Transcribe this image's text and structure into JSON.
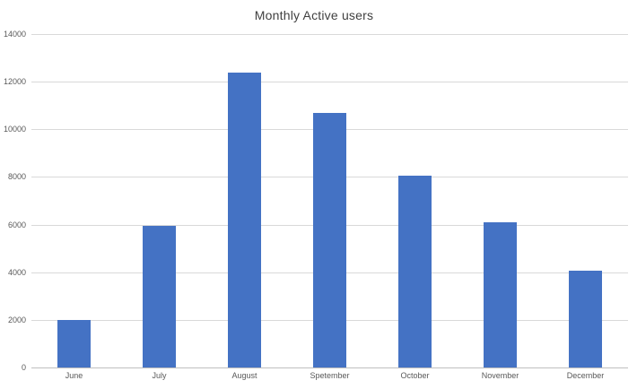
{
  "chart_data": {
    "type": "bar",
    "title": "Monthly Active users",
    "categories": [
      "June",
      "July",
      "August",
      "Spetember",
      "October",
      "November",
      "December"
    ],
    "values": [
      2000,
      5950,
      12400,
      10700,
      8050,
      6100,
      4050
    ],
    "xlabel": "",
    "ylabel": "",
    "ylim": [
      0,
      14000
    ],
    "ytick_step": 2000,
    "ytick_labels": [
      "0",
      "2000",
      "4000",
      "6000",
      "8000",
      "10000",
      "12000",
      "14000"
    ],
    "grid": true,
    "legend_position": "none",
    "colors": {
      "bar": "#4472C4",
      "gridline": "#D9D9D9",
      "axis_line": "#BFBFBF",
      "tick_label": "#595959",
      "title": "#404040",
      "background": "#FFFFFF"
    }
  }
}
